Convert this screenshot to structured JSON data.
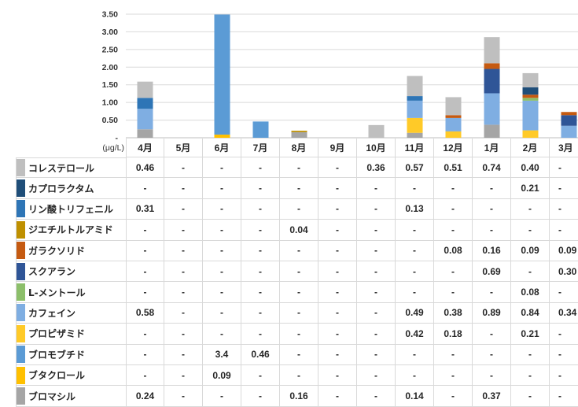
{
  "chart_data": {
    "type": "bar",
    "stacked": true,
    "legend": "bottom",
    "grid": true,
    "unit_label": "(μg/L)",
    "ylim": [
      0,
      3.5
    ],
    "y_ticks": [
      3.5,
      3.0,
      2.5,
      2.0,
      1.5,
      1.0,
      0.5,
      0
    ],
    "y_tick_labels": [
      "3.50",
      "3.00",
      "2.50",
      "2.00",
      "1.50",
      "1.00",
      "0.50",
      "-"
    ],
    "categories": [
      "4月",
      "5月",
      "6月",
      "7月",
      "8月",
      "9月",
      "10月",
      "11月",
      "12月",
      "1月",
      "2月",
      "3月"
    ],
    "series": [
      {
        "name": "コレステロール",
        "color": "#BFBFBF",
        "values": [
          0.46,
          null,
          null,
          null,
          null,
          null,
          0.36,
          0.57,
          0.51,
          0.74,
          0.4,
          null
        ],
        "labels": [
          "0.46",
          "-",
          "-",
          "-",
          "-",
          "-",
          "0.36",
          "0.57",
          "0.51",
          "0.74",
          "0.40",
          "-"
        ]
      },
      {
        "name": "カプロラクタム",
        "color": "#1F4E79",
        "values": [
          null,
          null,
          null,
          null,
          null,
          null,
          null,
          null,
          null,
          null,
          0.21,
          null
        ],
        "labels": [
          "-",
          "-",
          "-",
          "-",
          "-",
          "-",
          "-",
          "-",
          "-",
          "-",
          "0.21",
          "-"
        ]
      },
      {
        "name": "リン酸トリフェニル",
        "color": "#2E75B6",
        "values": [
          0.31,
          null,
          null,
          null,
          null,
          null,
          null,
          0.13,
          null,
          null,
          null,
          null
        ],
        "labels": [
          "0.31",
          "-",
          "-",
          "-",
          "-",
          "-",
          "-",
          "0.13",
          "-",
          "-",
          "-",
          "-"
        ]
      },
      {
        "name": "ジエチルトルアミド",
        "color": "#BF9000",
        "values": [
          null,
          null,
          null,
          null,
          0.04,
          null,
          null,
          null,
          null,
          null,
          null,
          null
        ],
        "labels": [
          "-",
          "-",
          "-",
          "-",
          "0.04",
          "-",
          "-",
          "-",
          "-",
          "-",
          "-",
          "-"
        ]
      },
      {
        "name": "ガラクソリド",
        "color": "#C55A11",
        "values": [
          null,
          null,
          null,
          null,
          null,
          null,
          null,
          null,
          0.08,
          0.16,
          0.09,
          0.09
        ],
        "labels": [
          "-",
          "-",
          "-",
          "-",
          "-",
          "-",
          "-",
          "-",
          "0.08",
          "0.16",
          "0.09",
          "0.09"
        ]
      },
      {
        "name": "スクアラン",
        "color": "#2F5597",
        "values": [
          null,
          null,
          null,
          null,
          null,
          null,
          null,
          null,
          null,
          0.69,
          null,
          0.3
        ],
        "labels": [
          "-",
          "-",
          "-",
          "-",
          "-",
          "-",
          "-",
          "-",
          "-",
          "0.69",
          "-",
          "0.30"
        ]
      },
      {
        "name": "L-メントール",
        "color": "#8CBF6A",
        "values": [
          null,
          null,
          null,
          null,
          null,
          null,
          null,
          null,
          null,
          null,
          0.08,
          null
        ],
        "labels": [
          "-",
          "-",
          "-",
          "-",
          "-",
          "-",
          "-",
          "-",
          "-",
          "-",
          "0.08",
          "-"
        ]
      },
      {
        "name": "カフェイン",
        "color": "#7FAEE2",
        "values": [
          0.58,
          null,
          null,
          null,
          null,
          null,
          null,
          0.49,
          0.38,
          0.89,
          0.84,
          0.34
        ],
        "labels": [
          "0.58",
          "-",
          "-",
          "-",
          "-",
          "-",
          "-",
          "0.49",
          "0.38",
          "0.89",
          "0.84",
          "0.34"
        ]
      },
      {
        "name": "プロピザミド",
        "color": "#FFCA28",
        "values": [
          null,
          null,
          null,
          null,
          null,
          null,
          null,
          0.42,
          0.18,
          null,
          0.21,
          null
        ],
        "labels": [
          "-",
          "-",
          "-",
          "-",
          "-",
          "-",
          "-",
          "0.42",
          "0.18",
          "-",
          "0.21",
          "-"
        ]
      },
      {
        "name": "ブロモブチド",
        "color": "#5B9BD5",
        "values": [
          null,
          null,
          3.4,
          0.46,
          null,
          null,
          null,
          null,
          null,
          null,
          null,
          null
        ],
        "labels": [
          "-",
          "-",
          "3.4",
          "0.46",
          "-",
          "-",
          "-",
          "-",
          "-",
          "-",
          "-",
          "-"
        ]
      },
      {
        "name": "ブタクロール",
        "color": "#FFC000",
        "values": [
          null,
          null,
          0.09,
          null,
          null,
          null,
          null,
          null,
          null,
          null,
          null,
          null
        ],
        "labels": [
          "-",
          "-",
          "0.09",
          "-",
          "-",
          "-",
          "-",
          "-",
          "-",
          "-",
          "-",
          "-"
        ]
      },
      {
        "name": "ブロマシル",
        "color": "#A5A5A5",
        "values": [
          0.24,
          null,
          null,
          null,
          0.16,
          null,
          null,
          0.14,
          null,
          0.37,
          null,
          null
        ],
        "labels": [
          "0.24",
          "-",
          "-",
          "-",
          "0.16",
          "-",
          "-",
          "0.14",
          "-",
          "0.37",
          "-",
          "-"
        ]
      }
    ]
  }
}
